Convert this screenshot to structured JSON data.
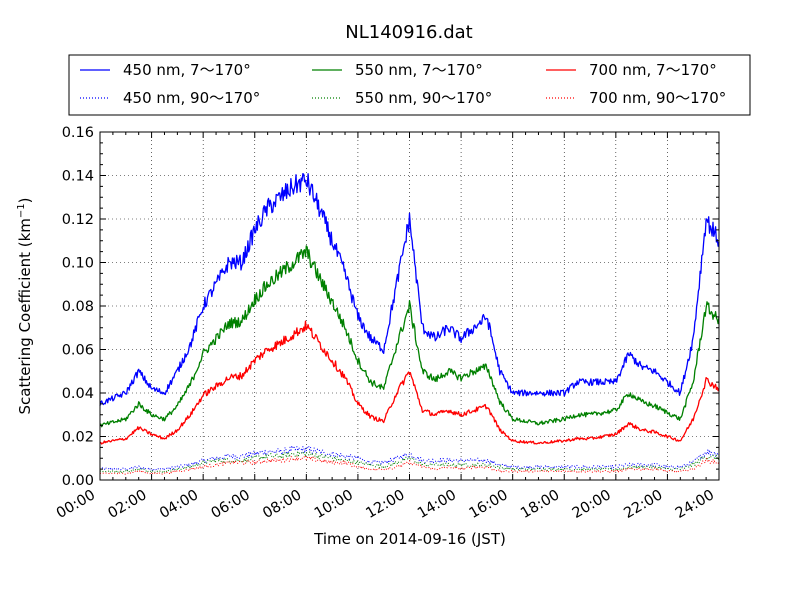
{
  "chart_data": {
    "type": "line",
    "title": "NL140916.dat",
    "xlabel": "Time on 2014-09-16 (JST)",
    "ylabel": "Scattering Coefficient (km",
    "ylabel_sup": "−1",
    "ylabel_end": ")",
    "xlim": [
      "00:00",
      "24:00"
    ],
    "ylim": [
      0.0,
      0.16
    ],
    "x_ticks": [
      "00:00",
      "02:00",
      "04:00",
      "06:00",
      "08:00",
      "10:00",
      "12:00",
      "14:00",
      "16:00",
      "18:00",
      "20:00",
      "22:00",
      "24:00"
    ],
    "y_ticks": [
      "0.00",
      "0.02",
      "0.04",
      "0.06",
      "0.08",
      "0.10",
      "0.12",
      "0.14",
      "0.16"
    ],
    "grid": true,
    "legend_position": "top",
    "legend_columns": 3,
    "x": [
      "00:00",
      "01:00",
      "01:30",
      "02:00",
      "02:30",
      "03:00",
      "03:30",
      "04:00",
      "04:30",
      "05:00",
      "05:30",
      "06:00",
      "06:30",
      "07:00",
      "07:30",
      "08:00",
      "08:30",
      "09:00",
      "09:30",
      "10:00",
      "10:30",
      "11:00",
      "11:30",
      "12:00",
      "12:30",
      "13:00",
      "13:30",
      "14:00",
      "14:30",
      "15:00",
      "15:30",
      "16:00",
      "17:00",
      "18:00",
      "18:30",
      "19:00",
      "20:00",
      "20:30",
      "21:00",
      "21:30",
      "22:00",
      "22:30",
      "23:00",
      "23:30",
      "24:00"
    ],
    "series": [
      {
        "name": "450 nm, 7～170°",
        "color": "#0000ff",
        "style": "solid",
        "values": [
          0.035,
          0.04,
          0.05,
          0.042,
          0.04,
          0.05,
          0.062,
          0.08,
          0.09,
          0.1,
          0.1,
          0.115,
          0.125,
          0.13,
          0.135,
          0.138,
          0.125,
          0.11,
          0.095,
          0.075,
          0.065,
          0.06,
          0.09,
          0.12,
          0.07,
          0.065,
          0.07,
          0.065,
          0.07,
          0.075,
          0.05,
          0.04,
          0.04,
          0.04,
          0.045,
          0.045,
          0.045,
          0.058,
          0.052,
          0.05,
          0.045,
          0.04,
          0.065,
          0.12,
          0.11
        ]
      },
      {
        "name": "550 nm, 7～170°",
        "color": "#008000",
        "style": "solid",
        "values": [
          0.025,
          0.028,
          0.035,
          0.03,
          0.028,
          0.034,
          0.044,
          0.058,
          0.065,
          0.072,
          0.073,
          0.083,
          0.09,
          0.095,
          0.1,
          0.105,
          0.093,
          0.082,
          0.07,
          0.055,
          0.045,
          0.042,
          0.062,
          0.08,
          0.05,
          0.046,
          0.05,
          0.047,
          0.05,
          0.052,
          0.036,
          0.028,
          0.026,
          0.028,
          0.03,
          0.03,
          0.032,
          0.04,
          0.036,
          0.034,
          0.031,
          0.028,
          0.045,
          0.08,
          0.073
        ]
      },
      {
        "name": "700 nm, 7～170°",
        "color": "#ff0000",
        "style": "solid",
        "values": [
          0.017,
          0.019,
          0.024,
          0.021,
          0.019,
          0.023,
          0.03,
          0.039,
          0.043,
          0.047,
          0.048,
          0.055,
          0.06,
          0.063,
          0.067,
          0.071,
          0.063,
          0.055,
          0.047,
          0.035,
          0.029,
          0.027,
          0.04,
          0.05,
          0.032,
          0.03,
          0.032,
          0.03,
          0.032,
          0.034,
          0.023,
          0.018,
          0.017,
          0.018,
          0.019,
          0.019,
          0.021,
          0.026,
          0.023,
          0.022,
          0.02,
          0.018,
          0.028,
          0.046,
          0.042
        ]
      },
      {
        "name": "450 nm, 90～170°",
        "color": "#0000ff",
        "style": "dotted",
        "values": [
          0.005,
          0.005,
          0.006,
          0.005,
          0.005,
          0.006,
          0.007,
          0.009,
          0.01,
          0.011,
          0.011,
          0.012,
          0.013,
          0.013,
          0.014,
          0.014,
          0.013,
          0.012,
          0.011,
          0.01,
          0.008,
          0.008,
          0.01,
          0.012,
          0.009,
          0.009,
          0.009,
          0.009,
          0.009,
          0.009,
          0.007,
          0.006,
          0.006,
          0.006,
          0.006,
          0.006,
          0.006,
          0.007,
          0.007,
          0.007,
          0.006,
          0.006,
          0.008,
          0.013,
          0.012
        ]
      },
      {
        "name": "550 nm, 90～170°",
        "color": "#008000",
        "style": "dotted",
        "values": [
          0.004,
          0.004,
          0.005,
          0.004,
          0.004,
          0.005,
          0.006,
          0.008,
          0.009,
          0.009,
          0.009,
          0.01,
          0.011,
          0.011,
          0.012,
          0.012,
          0.011,
          0.01,
          0.009,
          0.008,
          0.007,
          0.006,
          0.008,
          0.01,
          0.007,
          0.007,
          0.007,
          0.007,
          0.007,
          0.007,
          0.006,
          0.005,
          0.005,
          0.005,
          0.005,
          0.005,
          0.005,
          0.006,
          0.006,
          0.006,
          0.005,
          0.005,
          0.007,
          0.011,
          0.01
        ]
      },
      {
        "name": "700 nm, 90～170°",
        "color": "#ff0000",
        "style": "dotted",
        "values": [
          0.003,
          0.003,
          0.004,
          0.003,
          0.003,
          0.004,
          0.005,
          0.006,
          0.007,
          0.008,
          0.008,
          0.008,
          0.009,
          0.009,
          0.01,
          0.01,
          0.009,
          0.008,
          0.008,
          0.006,
          0.005,
          0.005,
          0.006,
          0.008,
          0.006,
          0.005,
          0.006,
          0.005,
          0.006,
          0.006,
          0.004,
          0.004,
          0.004,
          0.004,
          0.004,
          0.004,
          0.004,
          0.005,
          0.005,
          0.005,
          0.004,
          0.004,
          0.005,
          0.009,
          0.008
        ]
      }
    ]
  }
}
